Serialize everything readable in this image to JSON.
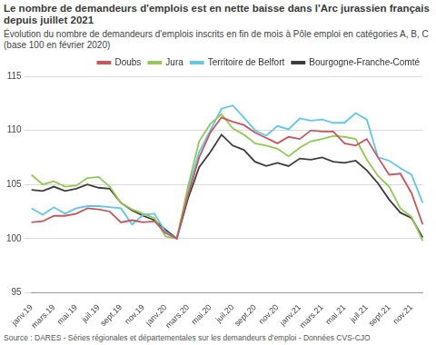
{
  "chart_data": {
    "type": "line",
    "title": "Le nombre de demandeurs d'emplois est en nette baisse dans l'Arc jurassien français depuis juillet 2021",
    "subtitle": [
      "Évolution du nombre de demandeurs d'emplois inscrits en fin de mois à Pôle emploi en catégories A, B, C",
      "(base 100 en février 2020)"
    ],
    "source": "Source : DARES - Séries régionales et départementales sur les demandeurs d'emploi - Données CVS-CJO",
    "categories": [
      "janv.19",
      null,
      "mars.19",
      null,
      "mai.19",
      null,
      "juil.19",
      null,
      "sept.19",
      null,
      "nov.19",
      null,
      "janv.20",
      null,
      "mars.20",
      null,
      "mai.20",
      null,
      "juil.20",
      null,
      "sept.20",
      null,
      "nov.20",
      null,
      "janv.21",
      null,
      "mars.21",
      null,
      "mai.21",
      null,
      "juil.21",
      null,
      "sept.21",
      null,
      "nov.21",
      null
    ],
    "series": [
      {
        "name": "Doubs",
        "color": "#c9565c",
        "values": [
          101.5,
          101.6,
          102.1,
          102.1,
          102.3,
          102.8,
          102.7,
          102.5,
          101.5,
          101.7,
          101.5,
          101.6,
          100.5,
          100,
          104,
          107.5,
          109.8,
          111.2,
          110.8,
          110.5,
          109.8,
          109.3,
          108.8,
          109.4,
          109.2,
          110,
          109.9,
          109.9,
          108.8,
          108.6,
          109.2,
          107.5,
          105.9,
          106,
          104.2,
          101.3
        ]
      },
      {
        "name": "Jura",
        "color": "#93c851",
        "values": [
          105.9,
          105.0,
          105.3,
          104.8,
          104.9,
          105.6,
          105.7,
          104.8,
          103.3,
          102.7,
          102.3,
          101.9,
          100.2,
          100,
          104.8,
          109,
          110.6,
          111.5,
          110.2,
          109.6,
          108.8,
          108.6,
          108.3,
          107.6,
          108.4,
          109,
          109.2,
          109.5,
          109.4,
          109.2,
          107.3,
          105.8,
          104.8,
          102.8,
          102,
          99.8
        ]
      },
      {
        "name": "Territoire de Belfort",
        "color": "#5cc8f0",
        "values": [
          102.8,
          102.2,
          102.9,
          102.3,
          102.8,
          103,
          103,
          102.9,
          102.8,
          101.3,
          102.2,
          102.3,
          100.6,
          100,
          104.5,
          108,
          110,
          112,
          112.3,
          111.2,
          110,
          109.5,
          110.4,
          110.1,
          111.1,
          110.9,
          111,
          110.7,
          110.7,
          111.6,
          111,
          107.5,
          107.2,
          106.5,
          105.9,
          103.3
        ]
      },
      {
        "name": "Bourgogne-Franche-Comté",
        "color": "#3d3d3d",
        "values": [
          104.5,
          104.4,
          104.8,
          104.4,
          104.6,
          105,
          104.7,
          104.6,
          103.3,
          102.6,
          102.1,
          101.7,
          100.8,
          100,
          103.7,
          106.6,
          108,
          109.6,
          108.6,
          108.2,
          107.1,
          106.7,
          107,
          106.7,
          107.4,
          107.3,
          107.5,
          107.1,
          107,
          107.2,
          106.3,
          105.1,
          103.6,
          102.4,
          101.9,
          100.1
        ]
      }
    ],
    "ylim": [
      95,
      115
    ],
    "yticks": [
      95,
      100,
      105,
      110,
      115
    ],
    "grid": true,
    "legend": "top",
    "marker": "none"
  }
}
